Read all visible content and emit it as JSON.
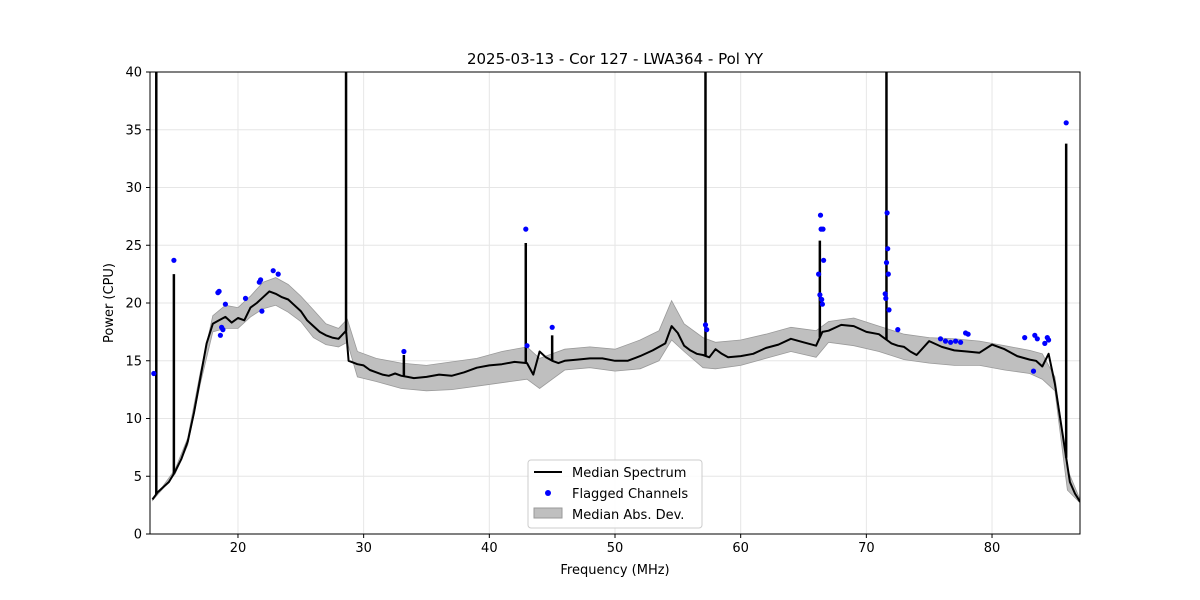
{
  "chart_data": {
    "type": "line",
    "title": "2025-03-13 - Cor 127 - LWA364 - Pol YY",
    "xlabel": "Frequency (MHz)",
    "ylabel": "Power (CPU)",
    "xlim": [
      13,
      87
    ],
    "ylim": [
      0,
      40
    ],
    "xticks": [
      20,
      30,
      40,
      50,
      60,
      70,
      80
    ],
    "yticks": [
      0,
      5,
      10,
      15,
      20,
      25,
      30,
      35,
      40
    ],
    "grid": true,
    "legend_position": "lower-center",
    "legend": [
      "Median Spectrum",
      "Flagged Channels",
      "Median Abs. Dev."
    ],
    "colors": {
      "median": "#000000",
      "flagged": "#0000ff",
      "mad_fill": "#bfbfbf",
      "mad_edge": "#9a9a9a"
    },
    "series": [
      {
        "name": "Median Spectrum",
        "x": [
          13.2,
          13.6,
          14.0,
          14.5,
          15.0,
          15.5,
          16.0,
          16.5,
          17.0,
          17.5,
          18.0,
          18.5,
          19.0,
          19.5,
          20.0,
          20.5,
          21.0,
          21.5,
          22.0,
          22.5,
          23.0,
          23.5,
          24.0,
          24.5,
          25.0,
          25.5,
          26.0,
          26.5,
          27.0,
          27.5,
          28.0,
          28.6,
          28.8,
          29.5,
          30.0,
          30.5,
          31.0,
          31.5,
          32.0,
          32.5,
          33.0,
          33.5,
          34.0,
          35.0,
          36.0,
          37.0,
          38.0,
          39.0,
          40.0,
          41.0,
          42.0,
          43.0,
          43.5,
          44.0,
          44.5,
          45.0,
          45.5,
          46.0,
          47.0,
          48.0,
          49.0,
          50.0,
          51.0,
          52.0,
          53.0,
          54.0,
          54.5,
          55.0,
          55.5,
          56.0,
          56.5,
          57.0,
          57.5,
          58.0,
          58.5,
          59.0,
          60.0,
          61.0,
          62.0,
          63.0,
          64.0,
          65.0,
          66.0,
          66.5,
          67.0,
          68.0,
          69.0,
          70.0,
          71.0,
          72.0,
          72.5,
          73.0,
          73.5,
          74.0,
          75.0,
          76.0,
          77.0,
          78.0,
          79.0,
          80.0,
          81.0,
          82.0,
          83.0,
          83.5,
          84.0,
          84.5,
          85.0,
          85.5,
          85.9,
          86.2,
          86.6,
          87.0
        ],
        "y": [
          3.0,
          3.6,
          4.0,
          4.5,
          5.4,
          6.5,
          8.0,
          10.5,
          13.5,
          16.5,
          18.2,
          18.5,
          18.8,
          18.3,
          18.7,
          18.5,
          19.6,
          20.0,
          20.5,
          21.0,
          20.8,
          20.5,
          20.3,
          19.8,
          19.3,
          18.5,
          18.0,
          17.5,
          17.2,
          17.0,
          16.9,
          17.6,
          15.0,
          14.7,
          14.6,
          14.2,
          14.0,
          13.8,
          13.7,
          13.9,
          13.7,
          13.6,
          13.5,
          13.6,
          13.8,
          13.7,
          14.0,
          14.4,
          14.6,
          14.7,
          14.9,
          14.8,
          13.8,
          15.8,
          15.3,
          15.0,
          14.8,
          15.0,
          15.1,
          15.2,
          15.2,
          15.0,
          15.0,
          15.4,
          15.9,
          16.5,
          18.0,
          17.4,
          16.3,
          15.9,
          15.6,
          15.5,
          15.3,
          16.0,
          15.6,
          15.3,
          15.4,
          15.6,
          16.1,
          16.4,
          16.9,
          16.6,
          16.3,
          17.5,
          17.6,
          18.1,
          18.0,
          17.5,
          17.3,
          16.5,
          16.3,
          16.2,
          15.8,
          15.5,
          16.7,
          16.2,
          15.9,
          15.8,
          15.7,
          16.4,
          16.0,
          15.4,
          15.1,
          15.0,
          14.5,
          15.6,
          13.0,
          9.5,
          6.6,
          4.5,
          3.5,
          2.8
        ]
      },
      {
        "name": "Median Abs. Dev.",
        "x": [
          13.2,
          14.0,
          15.0,
          16.0,
          17.0,
          18.0,
          19.0,
          20.0,
          21.0,
          22.0,
          23.0,
          24.0,
          25.0,
          26.0,
          27.0,
          28.0,
          28.7,
          29.5,
          31.0,
          33.0,
          35.0,
          37.0,
          39.0,
          41.0,
          43.0,
          44.0,
          46.0,
          48.0,
          50.0,
          52.0,
          53.5,
          54.5,
          55.5,
          57.0,
          58.0,
          60.0,
          62.0,
          64.0,
          66.0,
          67.0,
          69.0,
          71.0,
          73.0,
          75.0,
          77.0,
          79.0,
          81.0,
          83.0,
          84.0,
          85.0,
          86.0,
          87.0
        ],
        "lower": [
          2.9,
          3.9,
          5.2,
          7.7,
          13.0,
          17.5,
          17.8,
          17.8,
          18.8,
          19.5,
          19.8,
          19.2,
          18.4,
          17.0,
          16.4,
          16.2,
          16.6,
          13.6,
          13.2,
          12.6,
          12.4,
          12.5,
          12.8,
          13.1,
          13.4,
          12.6,
          14.2,
          14.4,
          14.1,
          14.3,
          15.0,
          16.8,
          15.8,
          14.4,
          14.3,
          14.6,
          15.2,
          15.8,
          15.3,
          16.6,
          16.3,
          15.8,
          15.1,
          14.8,
          14.6,
          14.6,
          14.2,
          13.9,
          13.4,
          12.4,
          3.8,
          2.7
        ],
        "upper": [
          3.1,
          4.1,
          5.6,
          8.3,
          14.0,
          18.9,
          19.8,
          19.6,
          20.6,
          21.8,
          22.2,
          21.6,
          20.6,
          19.4,
          18.2,
          17.8,
          18.6,
          15.8,
          15.2,
          14.8,
          14.6,
          14.9,
          15.2,
          15.8,
          16.2,
          15.2,
          16.0,
          16.2,
          16.0,
          16.8,
          17.6,
          20.2,
          18.2,
          17.0,
          16.6,
          16.8,
          17.3,
          17.9,
          17.6,
          18.4,
          18.7,
          18.0,
          17.3,
          17.0,
          16.9,
          16.7,
          16.3,
          15.9,
          15.6,
          13.6,
          5.6,
          3.0
        ]
      },
      {
        "name": "Flagged Channels",
        "x": [
          13.3,
          14.9,
          18.4,
          18.5,
          18.6,
          18.7,
          18.8,
          19.0,
          20.6,
          21.7,
          21.8,
          21.9,
          22.8,
          23.2,
          33.2,
          42.9,
          43.0,
          45.0,
          57.2,
          57.3,
          66.2,
          66.3,
          66.35,
          66.4,
          66.45,
          66.5,
          66.55,
          66.6,
          71.5,
          71.55,
          71.6,
          71.65,
          71.7,
          71.75,
          71.8,
          72.5,
          75.9,
          76.3,
          76.7,
          77.1,
          77.5,
          77.9,
          78.1,
          82.6,
          83.3,
          83.4,
          83.6,
          84.2,
          84.4,
          84.5,
          85.9
        ],
        "y": [
          13.9,
          23.7,
          20.9,
          21.0,
          17.2,
          17.9,
          17.7,
          19.9,
          20.4,
          21.8,
          22.0,
          19.3,
          22.8,
          22.5,
          15.8,
          26.4,
          16.3,
          17.9,
          18.1,
          17.7,
          22.5,
          20.7,
          27.6,
          26.4,
          20.3,
          19.9,
          26.4,
          23.7,
          20.8,
          20.4,
          23.5,
          27.8,
          24.7,
          22.5,
          19.4,
          17.7,
          16.9,
          16.7,
          16.6,
          16.7,
          16.6,
          17.4,
          17.3,
          17.0,
          14.1,
          17.2,
          16.9,
          16.5,
          17.0,
          16.8,
          35.6
        ],
        "spikes": [
          {
            "x": 13.5,
            "y": 40.0
          },
          {
            "x": 14.9,
            "y": 22.5
          },
          {
            "x": 28.6,
            "y": 40.0
          },
          {
            "x": 33.2,
            "y": 15.5
          },
          {
            "x": 42.9,
            "y": 25.2
          },
          {
            "x": 45.0,
            "y": 17.2
          },
          {
            "x": 57.2,
            "y": 40.0
          },
          {
            "x": 66.3,
            "y": 25.4
          },
          {
            "x": 71.6,
            "y": 40.0
          },
          {
            "x": 85.9,
            "y": 33.8
          }
        ]
      }
    ]
  }
}
